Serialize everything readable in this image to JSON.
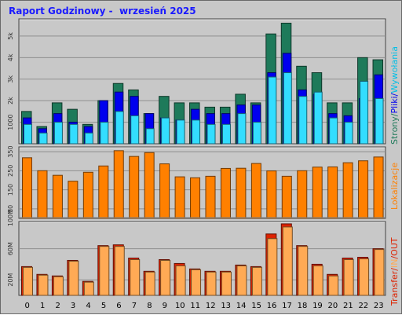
{
  "title": "Raport Godzinowy -  wrzesień 2025",
  "colors": {
    "strony": "#1e7a5a",
    "pliki": "#0000ee",
    "wywolania": "#33ddff",
    "lokalizacje": "#ff8000",
    "in": "#ffaa55",
    "out": "#dd2200",
    "title": "#1a1aff"
  },
  "legend": {
    "top": {
      "strony": "Strony",
      "sep1": "/",
      "pliki": "Pliki",
      "sep2": "/",
      "wywolania": "Wywołania"
    },
    "mid": {
      "lokalizacje": "Lokalizacje"
    },
    "bot": {
      "transfer": "Transfer",
      "sep1": "/",
      "in": "IN",
      "sep2": "/",
      "out": "OUT"
    }
  },
  "chart_data": [
    {
      "type": "bar",
      "categories": [
        "0",
        "1",
        "2",
        "3",
        "4",
        "5",
        "6",
        "7",
        "8",
        "9",
        "10",
        "11",
        "12",
        "13",
        "14",
        "15",
        "16",
        "17",
        "18",
        "19",
        "20",
        "21",
        "22",
        "23"
      ],
      "series": [
        {
          "name": "Strony",
          "values": [
            1500,
            800,
            1900,
            1600,
            900,
            2000,
            2800,
            2500,
            1400,
            2200,
            1900,
            1900,
            1700,
            1700,
            2300,
            1900,
            5100,
            5600,
            3600,
            3300,
            1900,
            1900,
            4000,
            3900
          ]
        },
        {
          "name": "Pliki",
          "values": [
            1200,
            700,
            1400,
            1000,
            800,
            2000,
            2400,
            2200,
            1400,
            1200,
            1100,
            1600,
            1400,
            1400,
            1800,
            1800,
            3300,
            4200,
            2500,
            2300,
            1400,
            1300,
            2100,
            3200
          ]
        },
        {
          "name": "Wywołania",
          "values": [
            900,
            500,
            1000,
            900,
            500,
            1000,
            1500,
            1300,
            700,
            1200,
            1100,
            1100,
            900,
            900,
            1400,
            1000,
            3100,
            3300,
            2200,
            2400,
            1200,
            1000,
            2900,
            2100
          ]
        }
      ],
      "ytick_labels": [
        "1000",
        "2k",
        "3k",
        "4k",
        "5k"
      ],
      "ylim": [
        0,
        5800
      ]
    },
    {
      "type": "bar",
      "categories": [
        "0",
        "1",
        "2",
        "3",
        "4",
        "5",
        "6",
        "7",
        "8",
        "9",
        "10",
        "11",
        "12",
        "13",
        "14",
        "15",
        "16",
        "17",
        "18",
        "19",
        "20",
        "21",
        "22",
        "23"
      ],
      "series": [
        {
          "name": "Lokalizacje",
          "values": [
            318,
            250,
            226,
            195,
            242,
            275,
            355,
            325,
            345,
            286,
            218,
            213,
            221,
            262,
            263,
            288,
            249,
            221,
            250,
            269,
            270,
            292,
            302,
            322
          ]
        }
      ],
      "ytick_labels": [
        "50",
        "150",
        "250",
        "350"
      ],
      "ylim": [
        0,
        375
      ]
    },
    {
      "type": "bar",
      "categories": [
        "0",
        "1",
        "2",
        "3",
        "4",
        "5",
        "6",
        "7",
        "8",
        "9",
        "10",
        "11",
        "12",
        "13",
        "14",
        "15",
        "16",
        "17",
        "18",
        "19",
        "20",
        "21",
        "22",
        "23"
      ],
      "series": [
        {
          "name": "OUT",
          "values": [
            37,
            27,
            25,
            45,
            18,
            64,
            65,
            48,
            31,
            46,
            41,
            34,
            31,
            31,
            39,
            37,
            79,
            92,
            64,
            40,
            27,
            48,
            49,
            60
          ]
        },
        {
          "name": "IN",
          "values": [
            36,
            26,
            24,
            44,
            17,
            63,
            63,
            46,
            30,
            45,
            38,
            33,
            30,
            30,
            38,
            36,
            73,
            88,
            63,
            38,
            25,
            46,
            47,
            59
          ]
        }
      ],
      "ytick_labels": [
        "20M",
        "60M",
        "100M"
      ],
      "ylim": [
        0,
        95
      ]
    }
  ]
}
